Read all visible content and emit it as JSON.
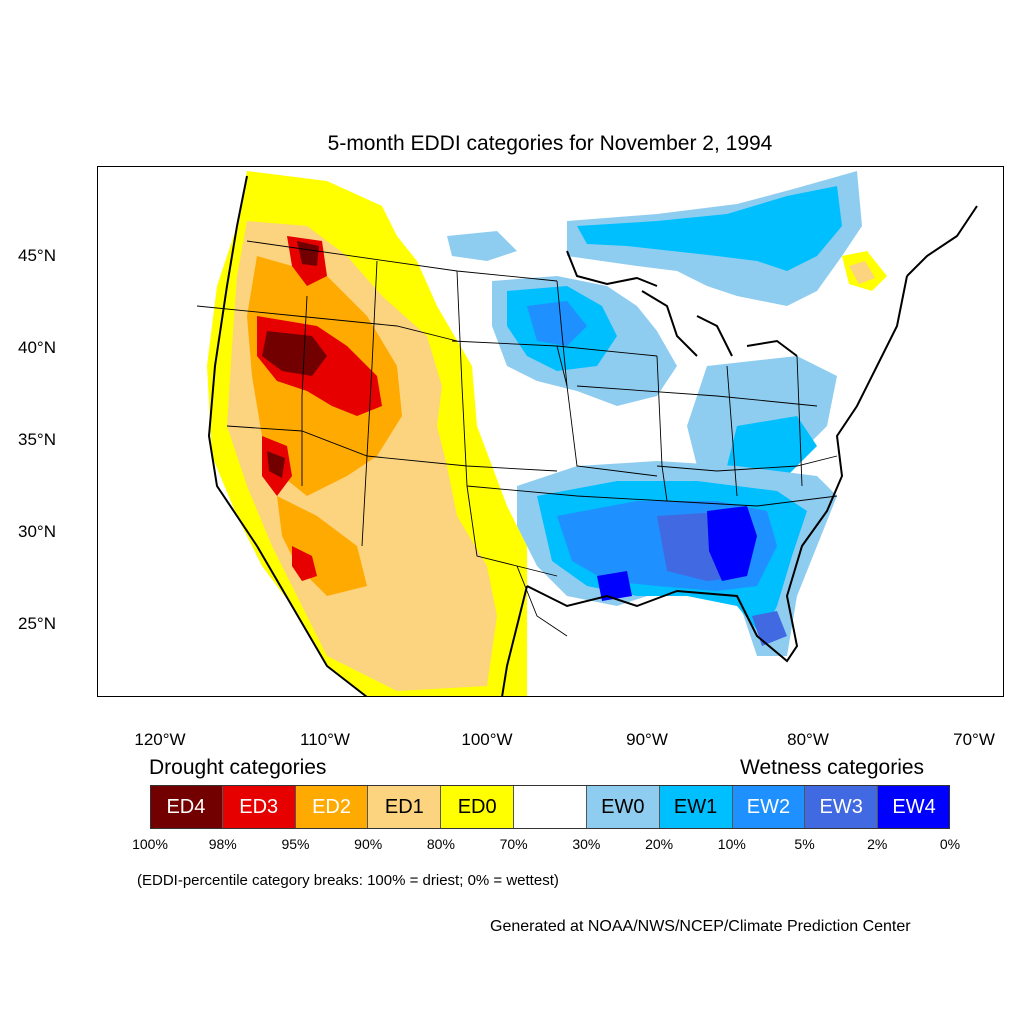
{
  "title": "5-month EDDI categories for November 2, 1994",
  "map": {
    "projection": "Lambert conformal (CONUS)",
    "latitude_labels": [
      "45°N",
      "40°N",
      "35°N",
      "30°N",
      "25°N"
    ],
    "longitude_labels": [
      "120°W",
      "110°W",
      "100°W",
      "90°W",
      "80°W",
      "70°W"
    ],
    "regions": [
      {
        "area": "Pacific Northwest / Northern Rockies",
        "category": "ED1-ED4"
      },
      {
        "area": "Great Basin (Nevada, Utah)",
        "category": "ED3-ED4"
      },
      {
        "area": "Colorado / Four Corners",
        "category": "ED2-ED3"
      },
      {
        "area": "Southwest / Arizona / New Mexico",
        "category": "ED1-ED2"
      },
      {
        "area": "Texas / Mexico",
        "category": "ED0-ED1"
      },
      {
        "area": "Upper Midwest / Great Lakes",
        "category": "EW0-EW1"
      },
      {
        "area": "Canada north of Great Lakes",
        "category": "EW0-EW1"
      },
      {
        "area": "Lower Mississippi Valley / Gulf Coast",
        "category": "EW1-EW3"
      },
      {
        "area": "Alabama / Georgia / Florida Panhandle",
        "category": "EW3-EW4"
      },
      {
        "area": "Mid-Atlantic / Ohio Valley",
        "category": "EW0-EW1"
      }
    ]
  },
  "legend": {
    "drought_title": "Drought categories",
    "wetness_title": "Wetness categories",
    "categories": [
      {
        "label": "ED4",
        "color": "#730000",
        "text_color": "#ffffff"
      },
      {
        "label": "ED3",
        "color": "#e60000",
        "text_color": "#ffffff"
      },
      {
        "label": "ED2",
        "color": "#ffaa00",
        "text_color": "#ffffff"
      },
      {
        "label": "ED1",
        "color": "#fcd37f",
        "text_color": "#000000"
      },
      {
        "label": "ED0",
        "color": "#ffff00",
        "text_color": "#000000"
      },
      {
        "label": "",
        "color": "#ffffff",
        "text_color": "#000000"
      },
      {
        "label": "EW0",
        "color": "#8fcdf0",
        "text_color": "#000000"
      },
      {
        "label": "EW1",
        "color": "#00bfff",
        "text_color": "#000000"
      },
      {
        "label": "EW2",
        "color": "#1e90ff",
        "text_color": "#ffffff"
      },
      {
        "label": "EW3",
        "color": "#4169e1",
        "text_color": "#ffffff"
      },
      {
        "label": "EW4",
        "color": "#0000ff",
        "text_color": "#ffffff"
      }
    ],
    "breaks": [
      "100%",
      "98%",
      "95%",
      "90%",
      "80%",
      "70%",
      "30%",
      "20%",
      "10%",
      "5%",
      "2%",
      "0%"
    ]
  },
  "note": "(EDDI-percentile category breaks: 100% = driest; 0% = wettest)",
  "credit": "Generated at NOAA/NWS/NCEP/Climate Prediction Center"
}
